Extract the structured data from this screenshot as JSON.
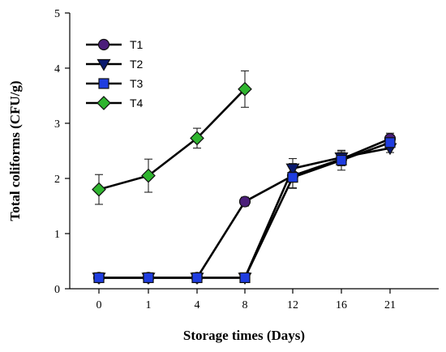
{
  "chart_data": {
    "type": "line",
    "xlabel": "Storage times (Days)",
    "ylabel": "Total coliforms (CFU/g)",
    "categories": [
      "0",
      "1",
      "4",
      "8",
      "12",
      "16",
      "21"
    ],
    "ylim": [
      0,
      5
    ],
    "yticks": [
      "0",
      "1",
      "2",
      "3",
      "4",
      "5"
    ],
    "grid": false,
    "legend_position": "top-left",
    "series": [
      {
        "name": "T1",
        "marker": "circle",
        "color": "#4b1e7a",
        "values": [
          0.2,
          0.2,
          0.2,
          1.58,
          2.05,
          2.35,
          2.72
        ],
        "errors": [
          0.0,
          0.0,
          0.0,
          0.08,
          0.22,
          0.12,
          0.1
        ]
      },
      {
        "name": "T2",
        "marker": "triangle-down",
        "color": "#0b1a6e",
        "values": [
          0.2,
          0.2,
          0.2,
          0.2,
          2.18,
          2.38,
          2.55
        ],
        "errors": [
          0.0,
          0.0,
          0.0,
          0.0,
          0.18,
          0.12,
          0.08
        ]
      },
      {
        "name": "T3",
        "marker": "square",
        "color": "#1f3de0",
        "values": [
          0.2,
          0.2,
          0.2,
          0.2,
          2.02,
          2.33,
          2.65
        ],
        "errors": [
          0.0,
          0.0,
          0.0,
          0.0,
          0.2,
          0.18,
          0.1
        ]
      },
      {
        "name": "T4",
        "marker": "diamond",
        "color": "#2fb52f",
        "values": [
          1.8,
          2.05,
          2.73,
          3.62,
          null,
          null,
          null
        ],
        "errors": [
          0.27,
          0.3,
          0.18,
          0.33,
          null,
          null,
          null
        ]
      }
    ]
  }
}
